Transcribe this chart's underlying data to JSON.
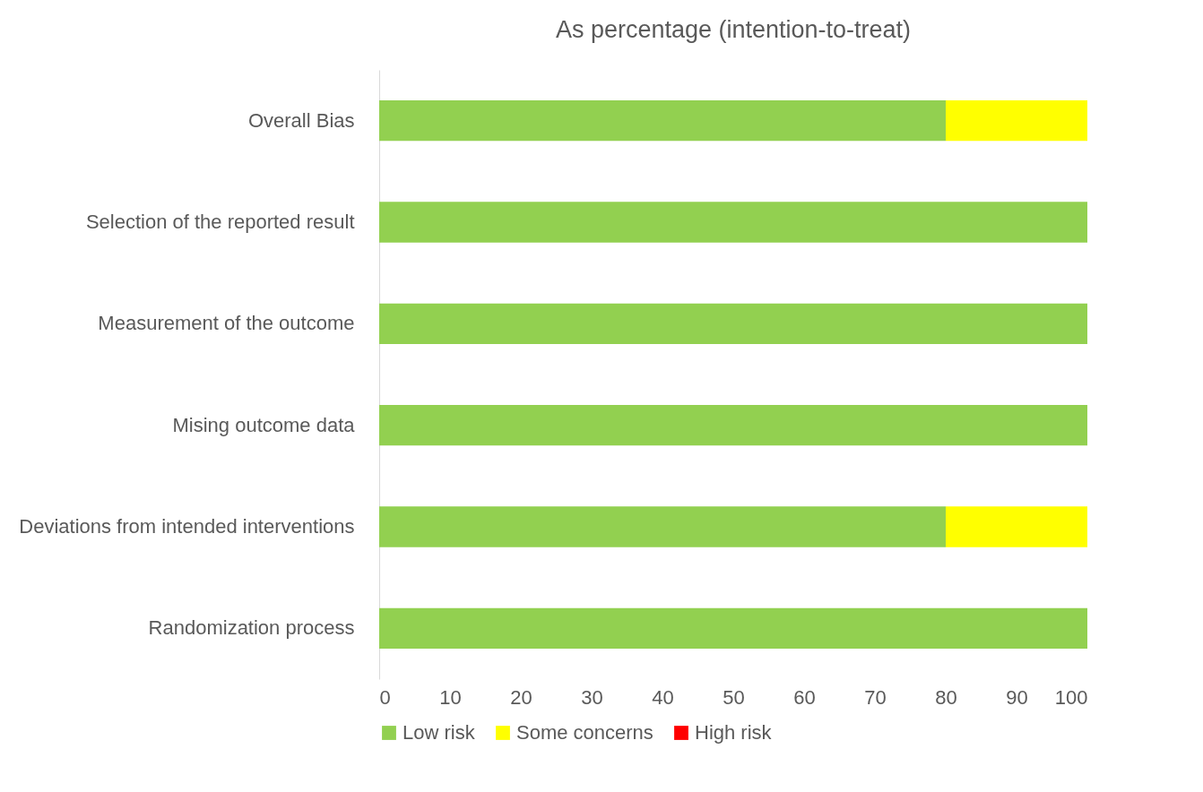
{
  "chart_data": {
    "type": "bar",
    "orientation": "horizontal",
    "stacked": true,
    "title": "As percentage (intention-to-treat)",
    "categories": [
      "Overall Bias",
      "Selection of the reported result",
      "Measurement of the outcome",
      "Mising outcome data",
      "Deviations from intended interventions",
      "Randomization process"
    ],
    "series": [
      {
        "name": "Low risk",
        "color": "#92d050",
        "values": [
          80,
          100,
          100,
          100,
          80,
          100
        ]
      },
      {
        "name": "Some concerns",
        "color": "#ffff00",
        "values": [
          20,
          0,
          0,
          0,
          20,
          0
        ]
      },
      {
        "name": "High risk",
        "color": "#ff0000",
        "values": [
          0,
          0,
          0,
          0,
          0,
          0
        ]
      }
    ],
    "xlim": [
      0,
      100
    ],
    "xticks": [
      0,
      10,
      20,
      30,
      40,
      50,
      60,
      70,
      80,
      90,
      100
    ],
    "grid": false,
    "legend": "bottom"
  }
}
